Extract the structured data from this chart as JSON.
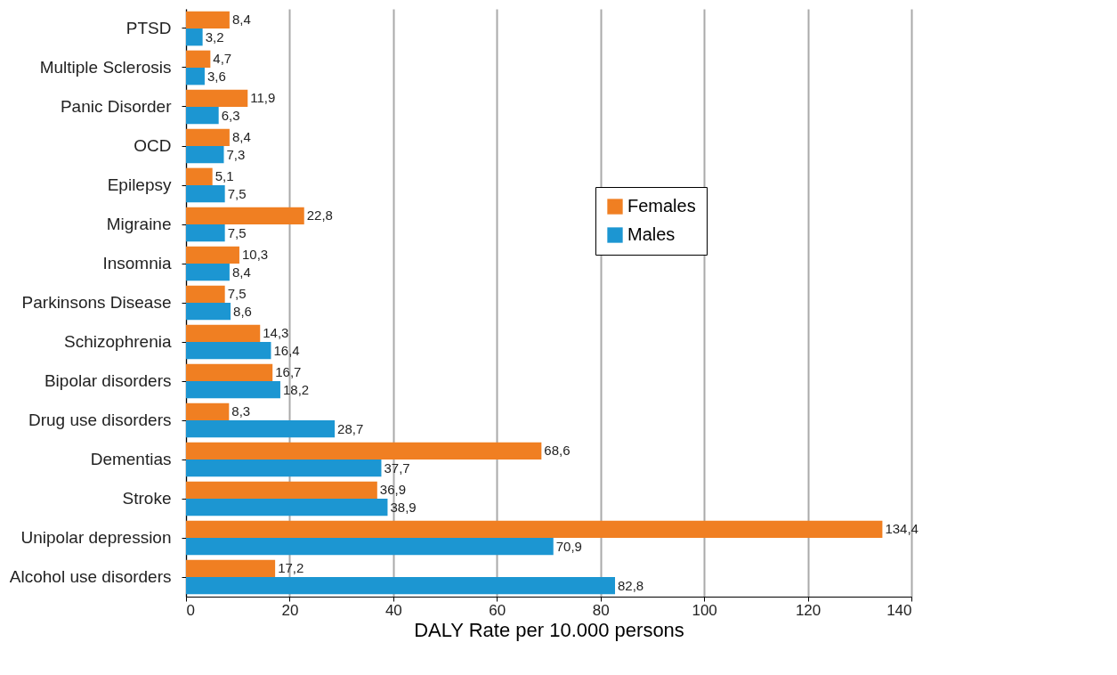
{
  "chart_data": {
    "type": "bar",
    "orientation": "horizontal",
    "xlabel": "DALY Rate per 10.000 persons",
    "categories": [
      "PTSD",
      "Multiple Sclerosis",
      "Panic Disorder",
      "OCD",
      "Epilepsy",
      "Migraine",
      "Insomnia",
      "Parkinsons Disease",
      "Schizophrenia",
      "Bipolar disorders",
      "Drug use disorders",
      "Dementias",
      "Stroke",
      "Unipolar depression",
      "Alcohol use disorders"
    ],
    "series": [
      {
        "name": "Females",
        "color": "#f07f22",
        "values": [
          8.4,
          4.7,
          11.9,
          8.4,
          5.1,
          22.8,
          10.3,
          7.5,
          14.3,
          16.7,
          8.3,
          68.6,
          36.9,
          134.4,
          17.2
        ],
        "value_labels": [
          "8,4",
          "4,7",
          "11,9",
          "8,4",
          "5,1",
          "22,8",
          "10,3",
          "7,5",
          "14,3",
          "16,7",
          "8,3",
          "68,6",
          "36,9",
          "134,4",
          "17,2"
        ]
      },
      {
        "name": "Males",
        "color": "#1c96d2",
        "values": [
          3.2,
          3.6,
          6.3,
          7.3,
          7.5,
          7.5,
          8.4,
          8.6,
          16.4,
          18.2,
          28.7,
          37.7,
          38.9,
          70.9,
          82.8
        ],
        "value_labels": [
          "3,2",
          "3,6",
          "6,3",
          "7,3",
          "7,5",
          "7,5",
          "8,4",
          "8,6",
          "16,4",
          "18,2",
          "28,7",
          "37,7",
          "38,9",
          "70,9",
          "82,8"
        ]
      }
    ],
    "xlim": [
      0,
      140
    ],
    "xticks": [
      0,
      20,
      40,
      60,
      80,
      100,
      120,
      140
    ],
    "grid": "x",
    "legend": "right"
  }
}
